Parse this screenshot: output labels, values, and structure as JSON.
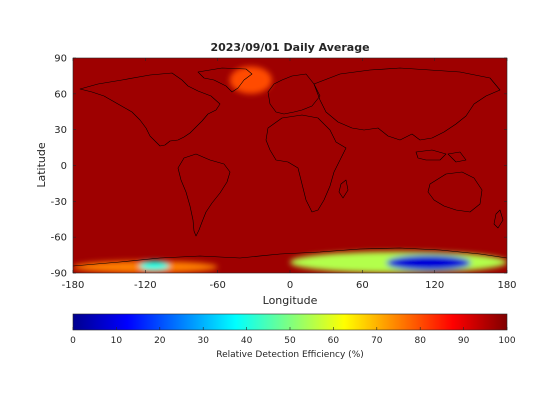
{
  "chart_data": {
    "type": "heatmap",
    "title": "2023/09/01 Daily Average",
    "xlabel": "Longitude",
    "ylabel": "Latitude",
    "xlim": [
      -180,
      180
    ],
    "ylim": [
      -90,
      90
    ],
    "x_ticks": [
      -180,
      -120,
      -60,
      0,
      60,
      120,
      180
    ],
    "y_ticks": [
      90,
      60,
      30,
      0,
      -30,
      -60,
      -90
    ],
    "colorbar": {
      "label": "Relative Detection Efficiency (%)",
      "range": [
        0,
        100
      ],
      "ticks": [
        0,
        10,
        20,
        30,
        40,
        50,
        60,
        70,
        80,
        90,
        100
      ],
      "colormap": "jet"
    },
    "background_value": 97,
    "features": [
      {
        "region": "Greenland",
        "lon": [
          -50,
          -15
        ],
        "lat": [
          60,
          83
        ],
        "value": 80
      },
      {
        "region": "Antarctic coast west",
        "lon": [
          -180,
          -60
        ],
        "lat": [
          -90,
          -80
        ],
        "value": 75
      },
      {
        "region": "Antarctic coast low patch",
        "lon": [
          -125,
          -100
        ],
        "lat": [
          -88,
          -80
        ],
        "value": 40
      },
      {
        "region": "East Antarctica plateau",
        "lon": [
          0,
          180
        ],
        "lat": [
          -90,
          -72
        ],
        "value": 55
      },
      {
        "region": "East Antarctica deep minimum",
        "lon": [
          80,
          150
        ],
        "lat": [
          -88,
          -75
        ],
        "value": 8
      }
    ]
  }
}
